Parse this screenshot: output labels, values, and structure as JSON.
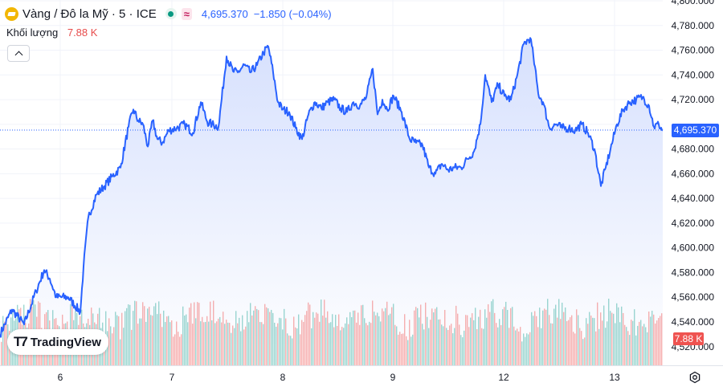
{
  "header": {
    "title": "Vàng / Đô la Mỹ · 5 · ICE",
    "price": "4,695.370",
    "change": "−1.850 (−0.04%)",
    "market_status_icon": "market-open-dot-icon",
    "compare_icon": "wave-compare-icon"
  },
  "volume": {
    "label": "Khối lượng",
    "value": "7.88 K"
  },
  "price_tag": "4,695.370",
  "volume_tag": "7.88 K",
  "logo": {
    "mark": "T7",
    "text": "TradingView"
  },
  "colors": {
    "line": "#2962ff",
    "area_top": "#d6e0fd",
    "area_bottom": "#ffffff",
    "vol_up": "#26a69a",
    "vol_down": "#ef5350",
    "price_tag": "#2962ff",
    "volume_tag": "#ef5350"
  },
  "chart_data": {
    "type": "area",
    "y_tick_labels": [
      "4,800.000",
      "4,780.000",
      "4,760.000",
      "4,740.000",
      "4,720.000",
      "4,700.000",
      "4,680.000",
      "4,660.000",
      "4,640.000",
      "4,620.000",
      "4,600.000",
      "4,580.000",
      "4,560.000",
      "4,540.000",
      "4,520.000"
    ],
    "ylim": [
      4514,
      4800
    ],
    "x_tick_labels": [
      "6",
      "7",
      "8",
      "9",
      "12",
      "13"
    ],
    "x_tick_index": [
      75,
      214,
      352,
      489,
      627,
      765
    ],
    "last_price": 4695.37,
    "series": [
      {
        "x_index": [
          0,
          15,
          30,
          45,
          55,
          62,
          70,
          85,
          100,
          104,
          110,
          120,
          130,
          140,
          150,
          160,
          166,
          172,
          178,
          184,
          190,
          196,
          202,
          210,
          220,
          230,
          240,
          250,
          258,
          264,
          272,
          282,
          290,
          296,
          304,
          312,
          320,
          328,
          334,
          340,
          346,
          352,
          360,
          368,
          376,
          384,
          392,
          400,
          408,
          416,
          424,
          432,
          440,
          448,
          456,
          464,
          470,
          476,
          482,
          490,
          500,
          510,
          518,
          526,
          534,
          542,
          550,
          558,
          566,
          574,
          582,
          590,
          598,
          604,
          612,
          620,
          628,
          636,
          644,
          652,
          660,
          664,
          670,
          676,
          684,
          692,
          700,
          708,
          716,
          724,
          732,
          740,
          748,
          754,
          760,
          768,
          776,
          784,
          792,
          800,
          808,
          814,
          820,
          825
        ],
        "values": [
          4530,
          4550,
          4538,
          4565,
          4582,
          4575,
          4560,
          4560,
          4548,
          4585,
          4625,
          4643,
          4650,
          4658,
          4665,
          4698,
          4712,
          4703,
          4700,
          4682,
          4703,
          4688,
          4685,
          4695,
          4697,
          4700,
          4693,
          4718,
          4702,
          4700,
          4698,
          4755,
          4743,
          4742,
          4748,
          4742,
          4748,
          4758,
          4763,
          4742,
          4718,
          4712,
          4710,
          4697,
          4688,
          4708,
          4718,
          4713,
          4718,
          4720,
          4713,
          4710,
          4718,
          4715,
          4722,
          4745,
          4708,
          4720,
          4712,
          4723,
          4710,
          4688,
          4685,
          4683,
          4665,
          4660,
          4668,
          4663,
          4665,
          4665,
          4672,
          4678,
          4700,
          4740,
          4718,
          4732,
          4723,
          4720,
          4740,
          4765,
          4770,
          4755,
          4725,
          4718,
          4697,
          4700,
          4697,
          4697,
          4695,
          4700,
          4693,
          4680,
          4650,
          4665,
          4680,
          4700,
          4712,
          4718,
          4720,
          4722,
          4715,
          4698,
          4700,
          4695
        ]
      }
    ],
    "volume_max_k": 28
  }
}
